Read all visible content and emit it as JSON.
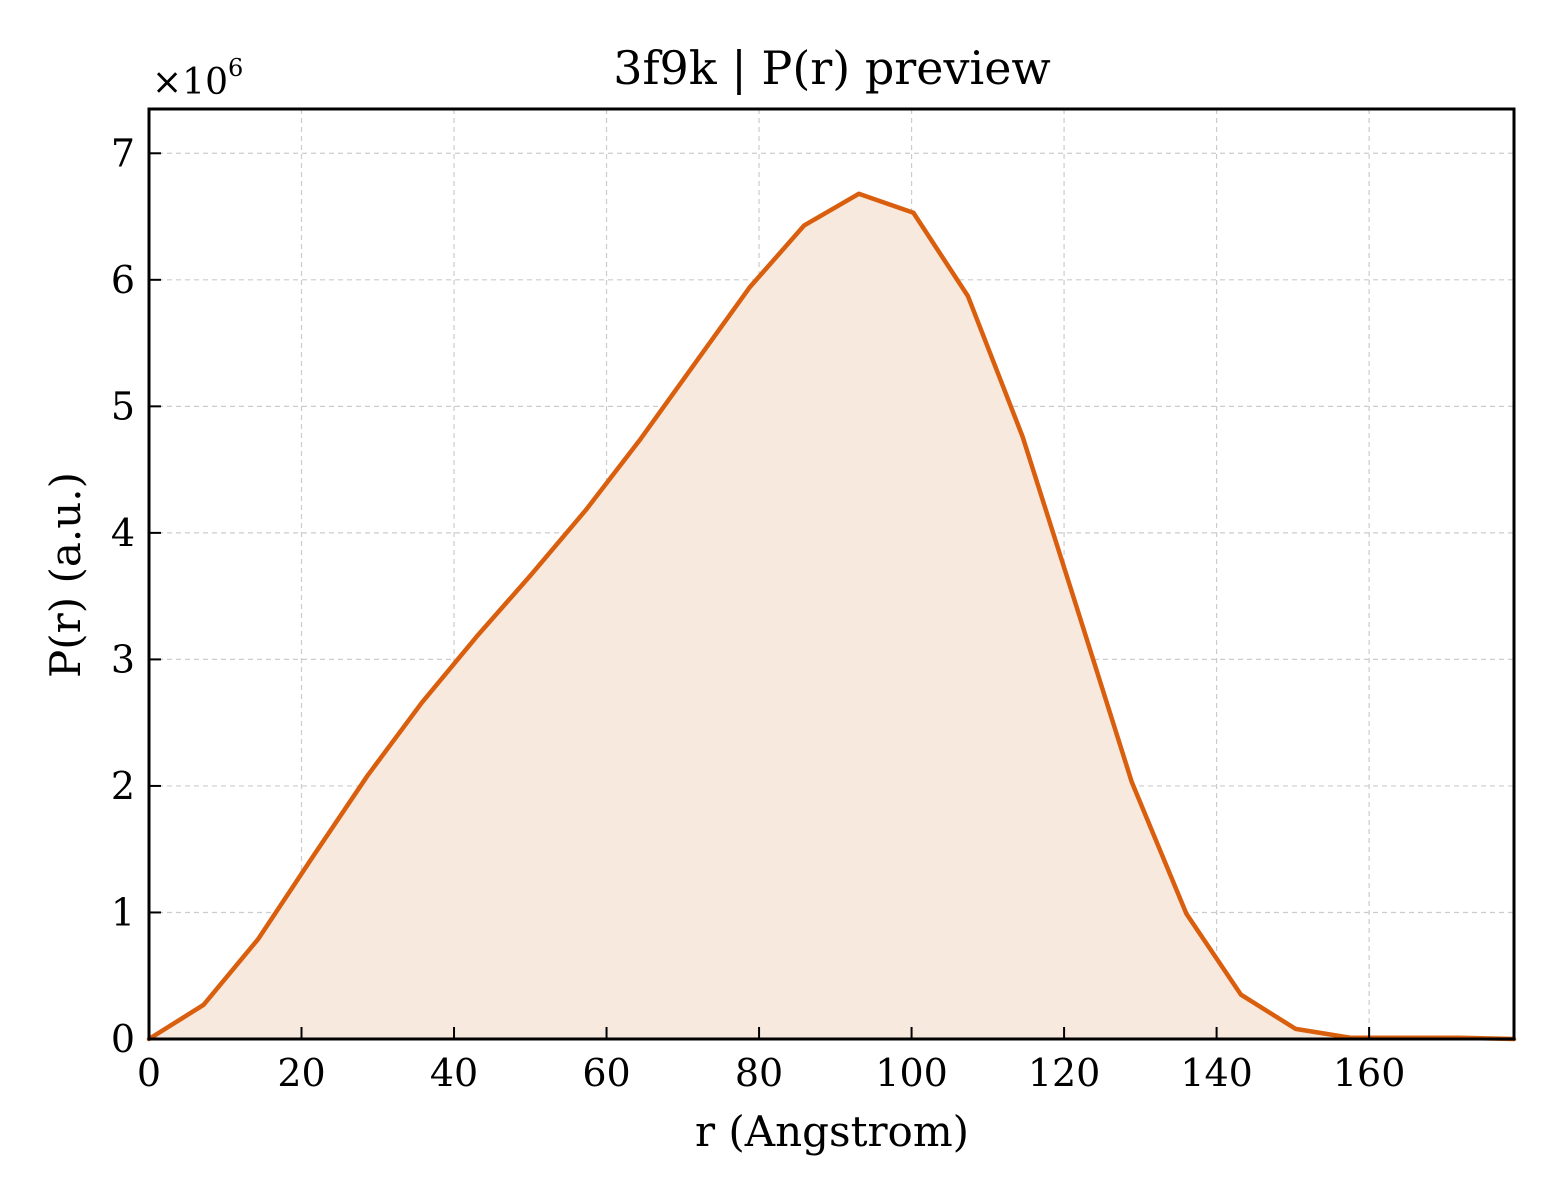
{
  "chart_data": {
    "type": "area",
    "title": "3f9k | P(r) preview",
    "xlabel": "r (Angstrom)",
    "ylabel": "P(r) (a.u.)",
    "y_multiplier": "×10",
    "y_multiplier_exponent": "6",
    "xlim": [
      0,
      179
    ],
    "ylim": [
      0,
      7.35
    ],
    "x_ticks": [
      0,
      20,
      40,
      60,
      80,
      100,
      120,
      140,
      160
    ],
    "y_ticks": [
      0,
      1,
      2,
      3,
      4,
      5,
      6,
      7
    ],
    "grid": true,
    "line_color": "#d95f0e",
    "fill_color": "#f8e9de",
    "series": [
      {
        "x": [
          0,
          7.16,
          14.32,
          21.48,
          28.64,
          35.8,
          42.96,
          50.12,
          57.28,
          64.44,
          71.6,
          78.76,
          85.92,
          93.08,
          100.24,
          107.4,
          114.56,
          121.72,
          128.88,
          136.04,
          143.2,
          150.36,
          157.52,
          164.68,
          171.84,
          179
        ],
        "y": [
          0,
          0.27,
          0.79,
          1.44,
          2.08,
          2.66,
          3.18,
          3.67,
          4.18,
          4.74,
          5.34,
          5.94,
          6.43,
          6.68,
          6.53,
          5.87,
          4.76,
          3.4,
          2.03,
          0.99,
          0.35,
          0.08,
          0.01,
          0.01,
          0.01,
          0
        ]
      }
    ]
  }
}
